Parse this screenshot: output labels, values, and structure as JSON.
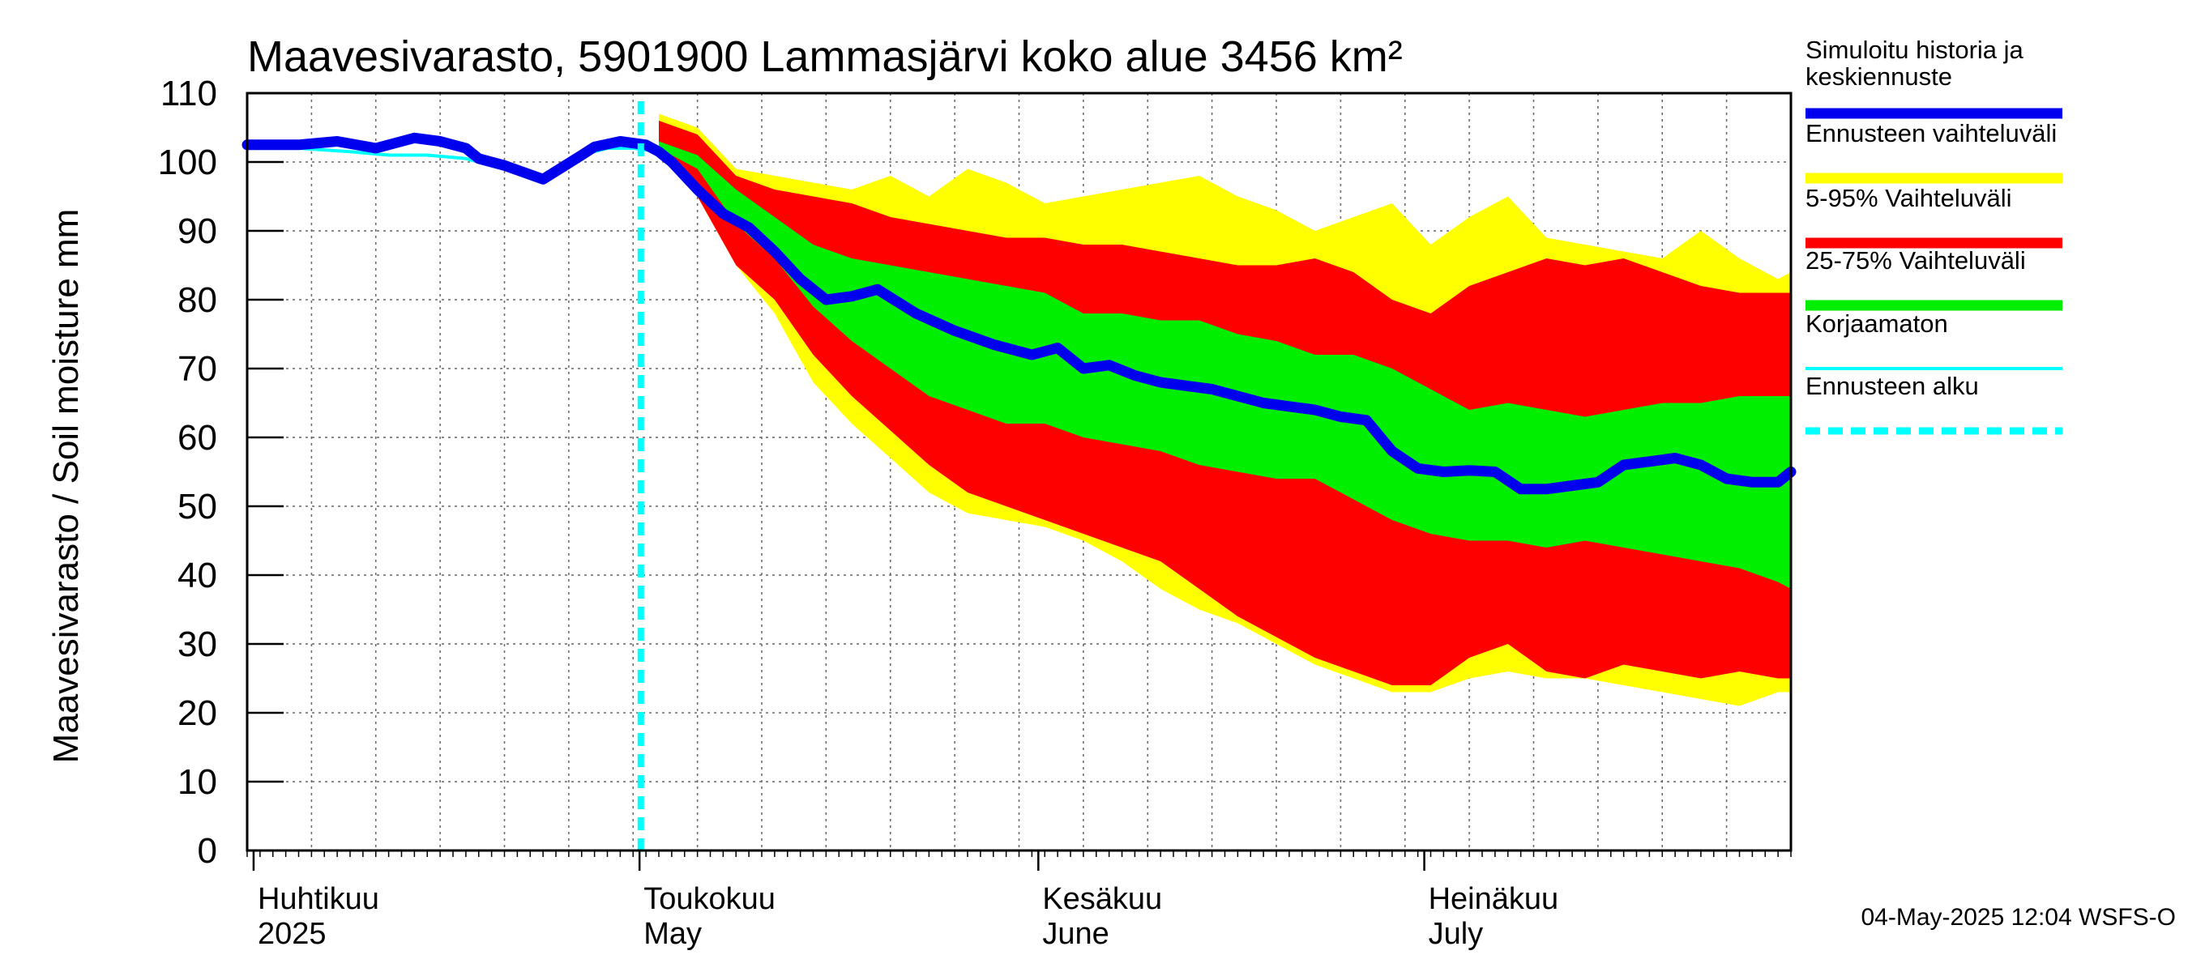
{
  "chart_data": {
    "type": "area",
    "title": "Maavesivarasto, 5901900 Lammasjärvi koko alue 3456 km²",
    "ylabel": "Maavesivarasto / Soil moisture   mm",
    "ylim": [
      0,
      110
    ],
    "yticks": [
      "0",
      "10",
      "20",
      "30",
      "40",
      "50",
      "60",
      "70",
      "80",
      "90",
      "100",
      "110"
    ],
    "x_range_days": [
      0,
      120
    ],
    "forecast_start_day": 32,
    "months": [
      {
        "label_fi": "Huhtikuu",
        "label_en": "2025",
        "day": 1
      },
      {
        "label_fi": "Toukokuu",
        "label_en": "May",
        "day": 31
      },
      {
        "label_fi": "Kesäkuu",
        "label_en": "June",
        "day": 62
      },
      {
        "label_fi": "Heinäkuu",
        "label_en": "July",
        "day": 92
      }
    ],
    "series": [
      {
        "name": "Simuloitu historia ja keskiennuste",
        "color": "#0000ee",
        "x": [
          0,
          4,
          7,
          10,
          13,
          15,
          17,
          18,
          20,
          23,
          26,
          27,
          29,
          31,
          32,
          33,
          35,
          37,
          39,
          41,
          43,
          45,
          47,
          49,
          52,
          55,
          58,
          61,
          63,
          65,
          67,
          69,
          71,
          73,
          75,
          77,
          79,
          81,
          83,
          85,
          87,
          89,
          91,
          93,
          95,
          97,
          99,
          101,
          103,
          105,
          107,
          109,
          111,
          113,
          115,
          117,
          119,
          120
        ],
        "values": [
          102.5,
          102.5,
          103,
          102,
          103.5,
          103,
          102,
          100.5,
          99.5,
          97.5,
          101,
          102.2,
          103,
          102.5,
          101.5,
          100,
          96,
          92.5,
          90.5,
          87,
          83,
          80,
          80.5,
          81.5,
          78,
          75.5,
          73.5,
          72,
          73,
          70,
          70.5,
          69,
          68,
          67.5,
          67,
          66,
          65,
          64.5,
          64,
          63,
          62.5,
          58,
          55.5,
          55,
          55.2,
          55,
          52.5,
          52.5,
          53,
          53.5,
          56,
          56.5,
          57,
          56,
          54,
          53.5,
          53.5,
          55
        ]
      },
      {
        "name": "Ennusteen vaihteluväli",
        "color": "#ffff00",
        "x": [
          32,
          35,
          38,
          41,
          44,
          47,
          50,
          53,
          56,
          59,
          62,
          65,
          68,
          71,
          74,
          77,
          80,
          83,
          86,
          89,
          92,
          95,
          98,
          101,
          104,
          107,
          110,
          113,
          116,
          119,
          120
        ],
        "upper": [
          107,
          105,
          99,
          98,
          97,
          96,
          98,
          95,
          99,
          97,
          94,
          95,
          96,
          97,
          98,
          95,
          93,
          90,
          92,
          94,
          88,
          92,
          95,
          89,
          88,
          87,
          86,
          90,
          86,
          83,
          84
        ],
        "lower": [
          101,
          95,
          85,
          78,
          68,
          62,
          57,
          52,
          49,
          48,
          47,
          45,
          42,
          38,
          35,
          33,
          30,
          27,
          25,
          23,
          23,
          25,
          26,
          25,
          25,
          24,
          23,
          22,
          21,
          23,
          23
        ]
      },
      {
        "name": "5-95% Vaihteluväli",
        "color": "#ff0000",
        "x": [
          32,
          35,
          38,
          41,
          44,
          47,
          50,
          53,
          56,
          59,
          62,
          65,
          68,
          71,
          74,
          77,
          80,
          83,
          86,
          89,
          92,
          95,
          98,
          101,
          104,
          107,
          110,
          113,
          116,
          119,
          120
        ],
        "upper": [
          106,
          104,
          98,
          96,
          95,
          94,
          92,
          91,
          90,
          89,
          89,
          88,
          88,
          87,
          86,
          85,
          85,
          86,
          84,
          80,
          78,
          82,
          84,
          86,
          85,
          86,
          84,
          82,
          81,
          81,
          81
        ],
        "lower": [
          101,
          95,
          85,
          80,
          72,
          66,
          61,
          56,
          52,
          50,
          48,
          46,
          44,
          42,
          38,
          34,
          31,
          28,
          26,
          24,
          24,
          28,
          30,
          26,
          25,
          27,
          26,
          25,
          26,
          25,
          25
        ]
      },
      {
        "name": "25-75% Vaihteluväli",
        "color": "#00ee00",
        "x": [
          32,
          35,
          38,
          41,
          44,
          47,
          50,
          53,
          56,
          59,
          62,
          65,
          68,
          71,
          74,
          77,
          80,
          83,
          86,
          89,
          92,
          95,
          98,
          101,
          104,
          107,
          110,
          113,
          116,
          119,
          120
        ],
        "upper": [
          103,
          101,
          96,
          92,
          88,
          86,
          85,
          84,
          83,
          82,
          81,
          78,
          78,
          77,
          77,
          75,
          74,
          72,
          72,
          70,
          67,
          64,
          65,
          64,
          63,
          64,
          65,
          65,
          66,
          66,
          66
        ],
        "lower": [
          102,
          99,
          91,
          86,
          79,
          74,
          70,
          66,
          64,
          62,
          62,
          60,
          59,
          58,
          56,
          55,
          54,
          54,
          51,
          48,
          46,
          45,
          45,
          44,
          45,
          44,
          43,
          42,
          41,
          39,
          38
        ]
      },
      {
        "name": "Korjaamaton",
        "color": "#00ffff",
        "x": [
          0,
          4,
          8,
          11,
          14,
          17,
          20,
          23,
          26,
          28,
          30,
          32
        ],
        "values": [
          102,
          102,
          101.5,
          101,
          101,
          100.5,
          99,
          98,
          101,
          102,
          102,
          101.5
        ]
      }
    ],
    "legend": [
      {
        "text": "Simuloitu historia ja",
        "text2": "keskiennuste",
        "color": "#0000ee",
        "style": "solid"
      },
      {
        "text": "Ennusteen vaihteluväli",
        "text2": "",
        "color": "#ffff00",
        "style": "solid"
      },
      {
        "text": "5-95% Vaihteluväli",
        "text2": "",
        "color": "#ff0000",
        "style": "solid"
      },
      {
        "text": "25-75% Vaihteluväli",
        "text2": "",
        "color": "#00ee00",
        "style": "solid"
      },
      {
        "text": "Korjaamaton",
        "text2": "",
        "color": "#00ffff",
        "style": "thin"
      },
      {
        "text": "Ennusteen alku",
        "text2": "",
        "color": "#00ffff",
        "style": "dashed"
      }
    ],
    "footer": "04-May-2025 12:04 WSFS-O"
  }
}
